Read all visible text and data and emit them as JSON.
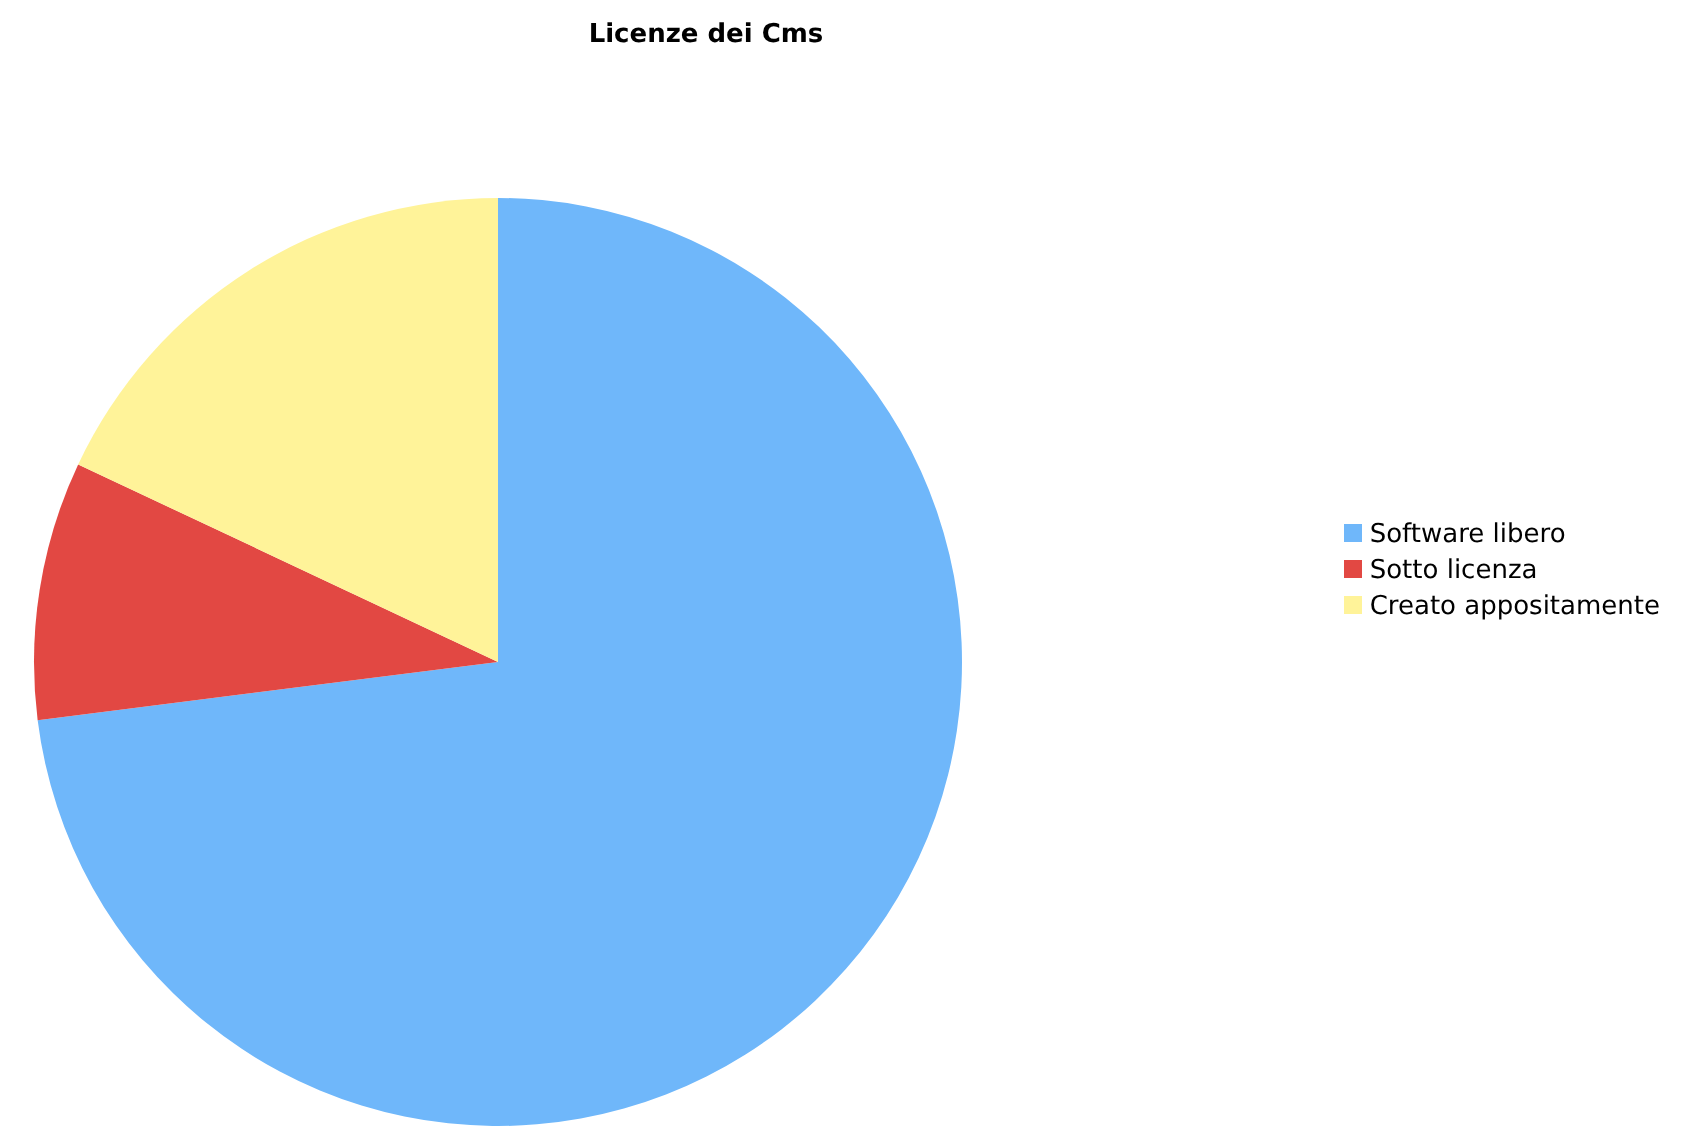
{
  "chart_data": {
    "type": "pie",
    "title": "Licenze dei Cms",
    "categories": [
      "Software libero",
      "Sotto licenza",
      "Creato appositamente"
    ],
    "values": [
      73,
      9,
      18
    ],
    "colors": [
      "#6fb7fa",
      "#e24843",
      "#fff399"
    ],
    "legend": "right"
  }
}
